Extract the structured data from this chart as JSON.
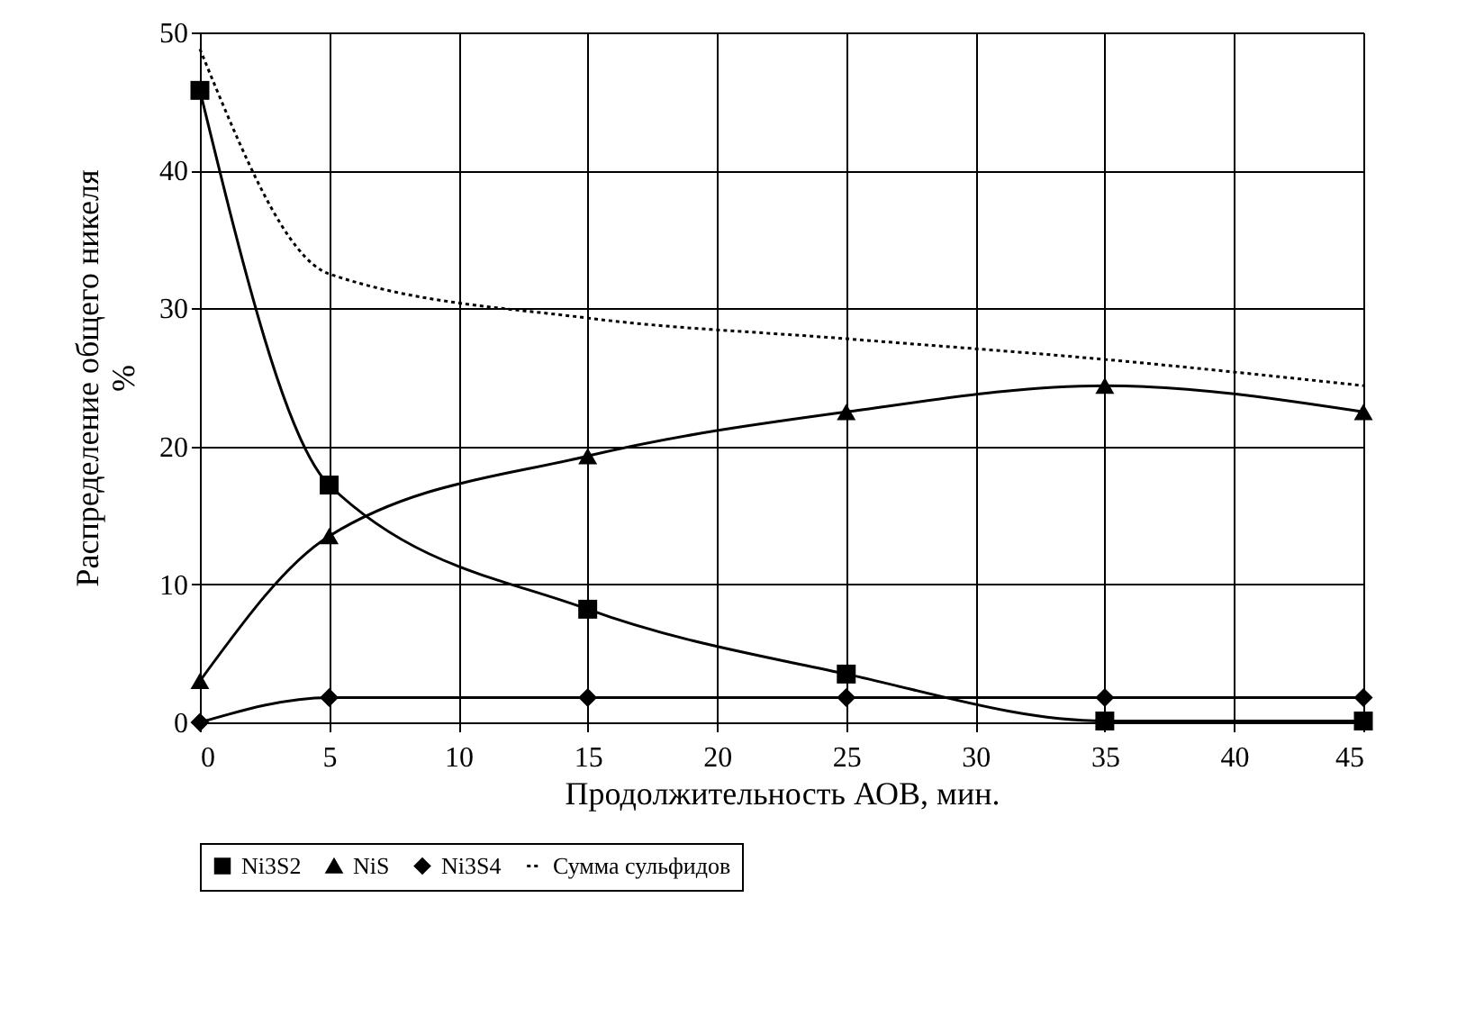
{
  "chart_data": {
    "type": "line",
    "xlabel": "Продолжительность АОВ, мин.",
    "ylabel": "Распределение общего никеля\n%",
    "x": [
      0,
      5,
      15,
      25,
      35,
      45
    ],
    "xlim": [
      0,
      45
    ],
    "xticks": [
      0,
      5,
      10,
      15,
      20,
      25,
      30,
      35,
      40,
      45
    ],
    "ylim": [
      0,
      50
    ],
    "yticks": [
      0,
      10,
      20,
      30,
      40,
      50
    ],
    "grid": true,
    "legend": "bottom",
    "series": [
      {
        "name": "Ni3S2",
        "color": "#000000",
        "marker": "square",
        "line_style": "solid",
        "values": [
          45.8,
          17.2,
          8.2,
          3.5,
          0.1,
          0.1
        ]
      },
      {
        "name": "NiS",
        "color": "#000000",
        "marker": "triangle",
        "line_style": "solid",
        "values": [
          3,
          13.5,
          19.3,
          22.5,
          24.4,
          22.5
        ]
      },
      {
        "name": "Ni3S4",
        "color": "#000000",
        "marker": "diamond",
        "line_style": "solid",
        "values": [
          0,
          1.8,
          1.8,
          1.8,
          1.8,
          1.8
        ]
      },
      {
        "name": "Сумма сульфидов",
        "color": "#000000",
        "marker": "none",
        "line_style": "dotted",
        "values": [
          48.8,
          32.5,
          29.3,
          27.8,
          26.3,
          24.4
        ]
      }
    ]
  }
}
